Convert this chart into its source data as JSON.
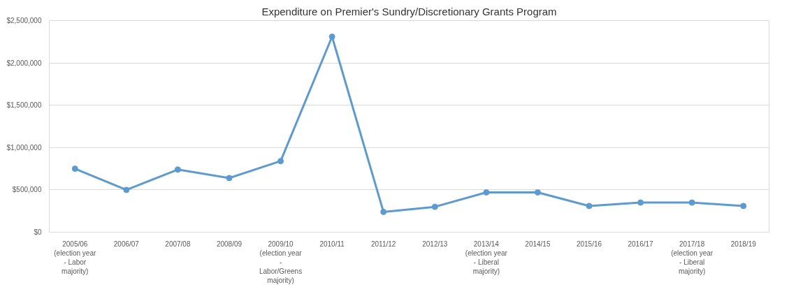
{
  "chart_data": {
    "type": "line",
    "title": "Expenditure on Premier's Sundry/Discretionary Grants Program",
    "categories": [
      "2005/06\n(election year\n- Labor\nmajority)",
      "2006/07",
      "2007/08",
      "2008/09",
      "2009/10\n(election year\n-\nLabor/Greens\nmajority)",
      "2010/11",
      "2011/12",
      "2012/13",
      "2013/14\n(election year\n- Liberal\nmajority)",
      "2014/15",
      "2015/16",
      "2016/17",
      "2017/18\n(election year\n- Liberal\nmajority)",
      "2018/19"
    ],
    "series": [
      {
        "color": "#5b9bd5",
        "values": [
          750000,
          500000,
          740000,
          640000,
          840000,
          2310000,
          240000,
          300000,
          470000,
          470000,
          310000,
          350000,
          350000,
          310000
        ]
      }
    ],
    "ylim": [
      0,
      2500000
    ],
    "yticks": [
      {
        "value": 0,
        "label": "$0"
      },
      {
        "value": 500000,
        "label": "$500,000"
      },
      {
        "value": 1000000,
        "label": "$1,000,000"
      },
      {
        "value": 1500000,
        "label": "$1,500,000"
      },
      {
        "value": 2000000,
        "label": "$2,000,000"
      },
      {
        "value": 2500000,
        "label": "$2,500,000"
      }
    ],
    "grid": "y",
    "marker": "circle",
    "line_style": "solid"
  }
}
